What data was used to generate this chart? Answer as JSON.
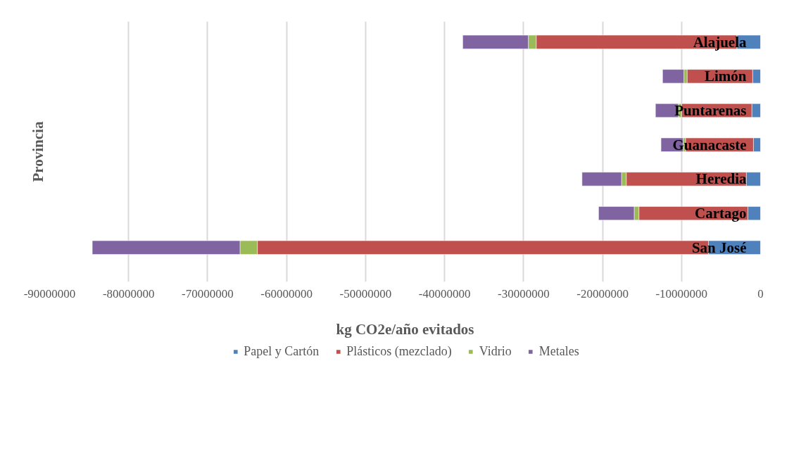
{
  "chart_data": {
    "type": "bar",
    "orientation": "horizontal",
    "stacked": true,
    "xlabel": "kg CO2e/año evitados",
    "ylabel": "Provincia",
    "categories": [
      "Alajuela",
      "Limón",
      "Puntarenas",
      "Guanacaste",
      "Heredia",
      "Cartago",
      "San José"
    ],
    "series": [
      {
        "name": "Papel y Cartón",
        "color": "#4f81bd",
        "values": [
          -3000000,
          -1000000,
          -1100000,
          -900000,
          -1800000,
          -1600000,
          -6600000
        ]
      },
      {
        "name": "Plásticos (mezclado)",
        "color": "#c0504d",
        "values": [
          -25400000,
          -8300000,
          -8900000,
          -8600000,
          -15200000,
          -13800000,
          -57100000
        ]
      },
      {
        "name": "Vidrio",
        "color": "#9bbb59",
        "values": [
          -1000000,
          -400000,
          -400000,
          -300000,
          -600000,
          -600000,
          -2200000
        ]
      },
      {
        "name": "Metales",
        "color": "#8064a2",
        "values": [
          -8300000,
          -2700000,
          -2900000,
          -2800000,
          -5000000,
          -4500000,
          -18700000
        ]
      }
    ],
    "xlim": [
      -90000000,
      0
    ],
    "xticks": [
      -90000000,
      -80000000,
      -70000000,
      -60000000,
      -50000000,
      -40000000,
      -30000000,
      -20000000,
      -10000000,
      0
    ],
    "grid": "x",
    "legend": "bottom"
  }
}
